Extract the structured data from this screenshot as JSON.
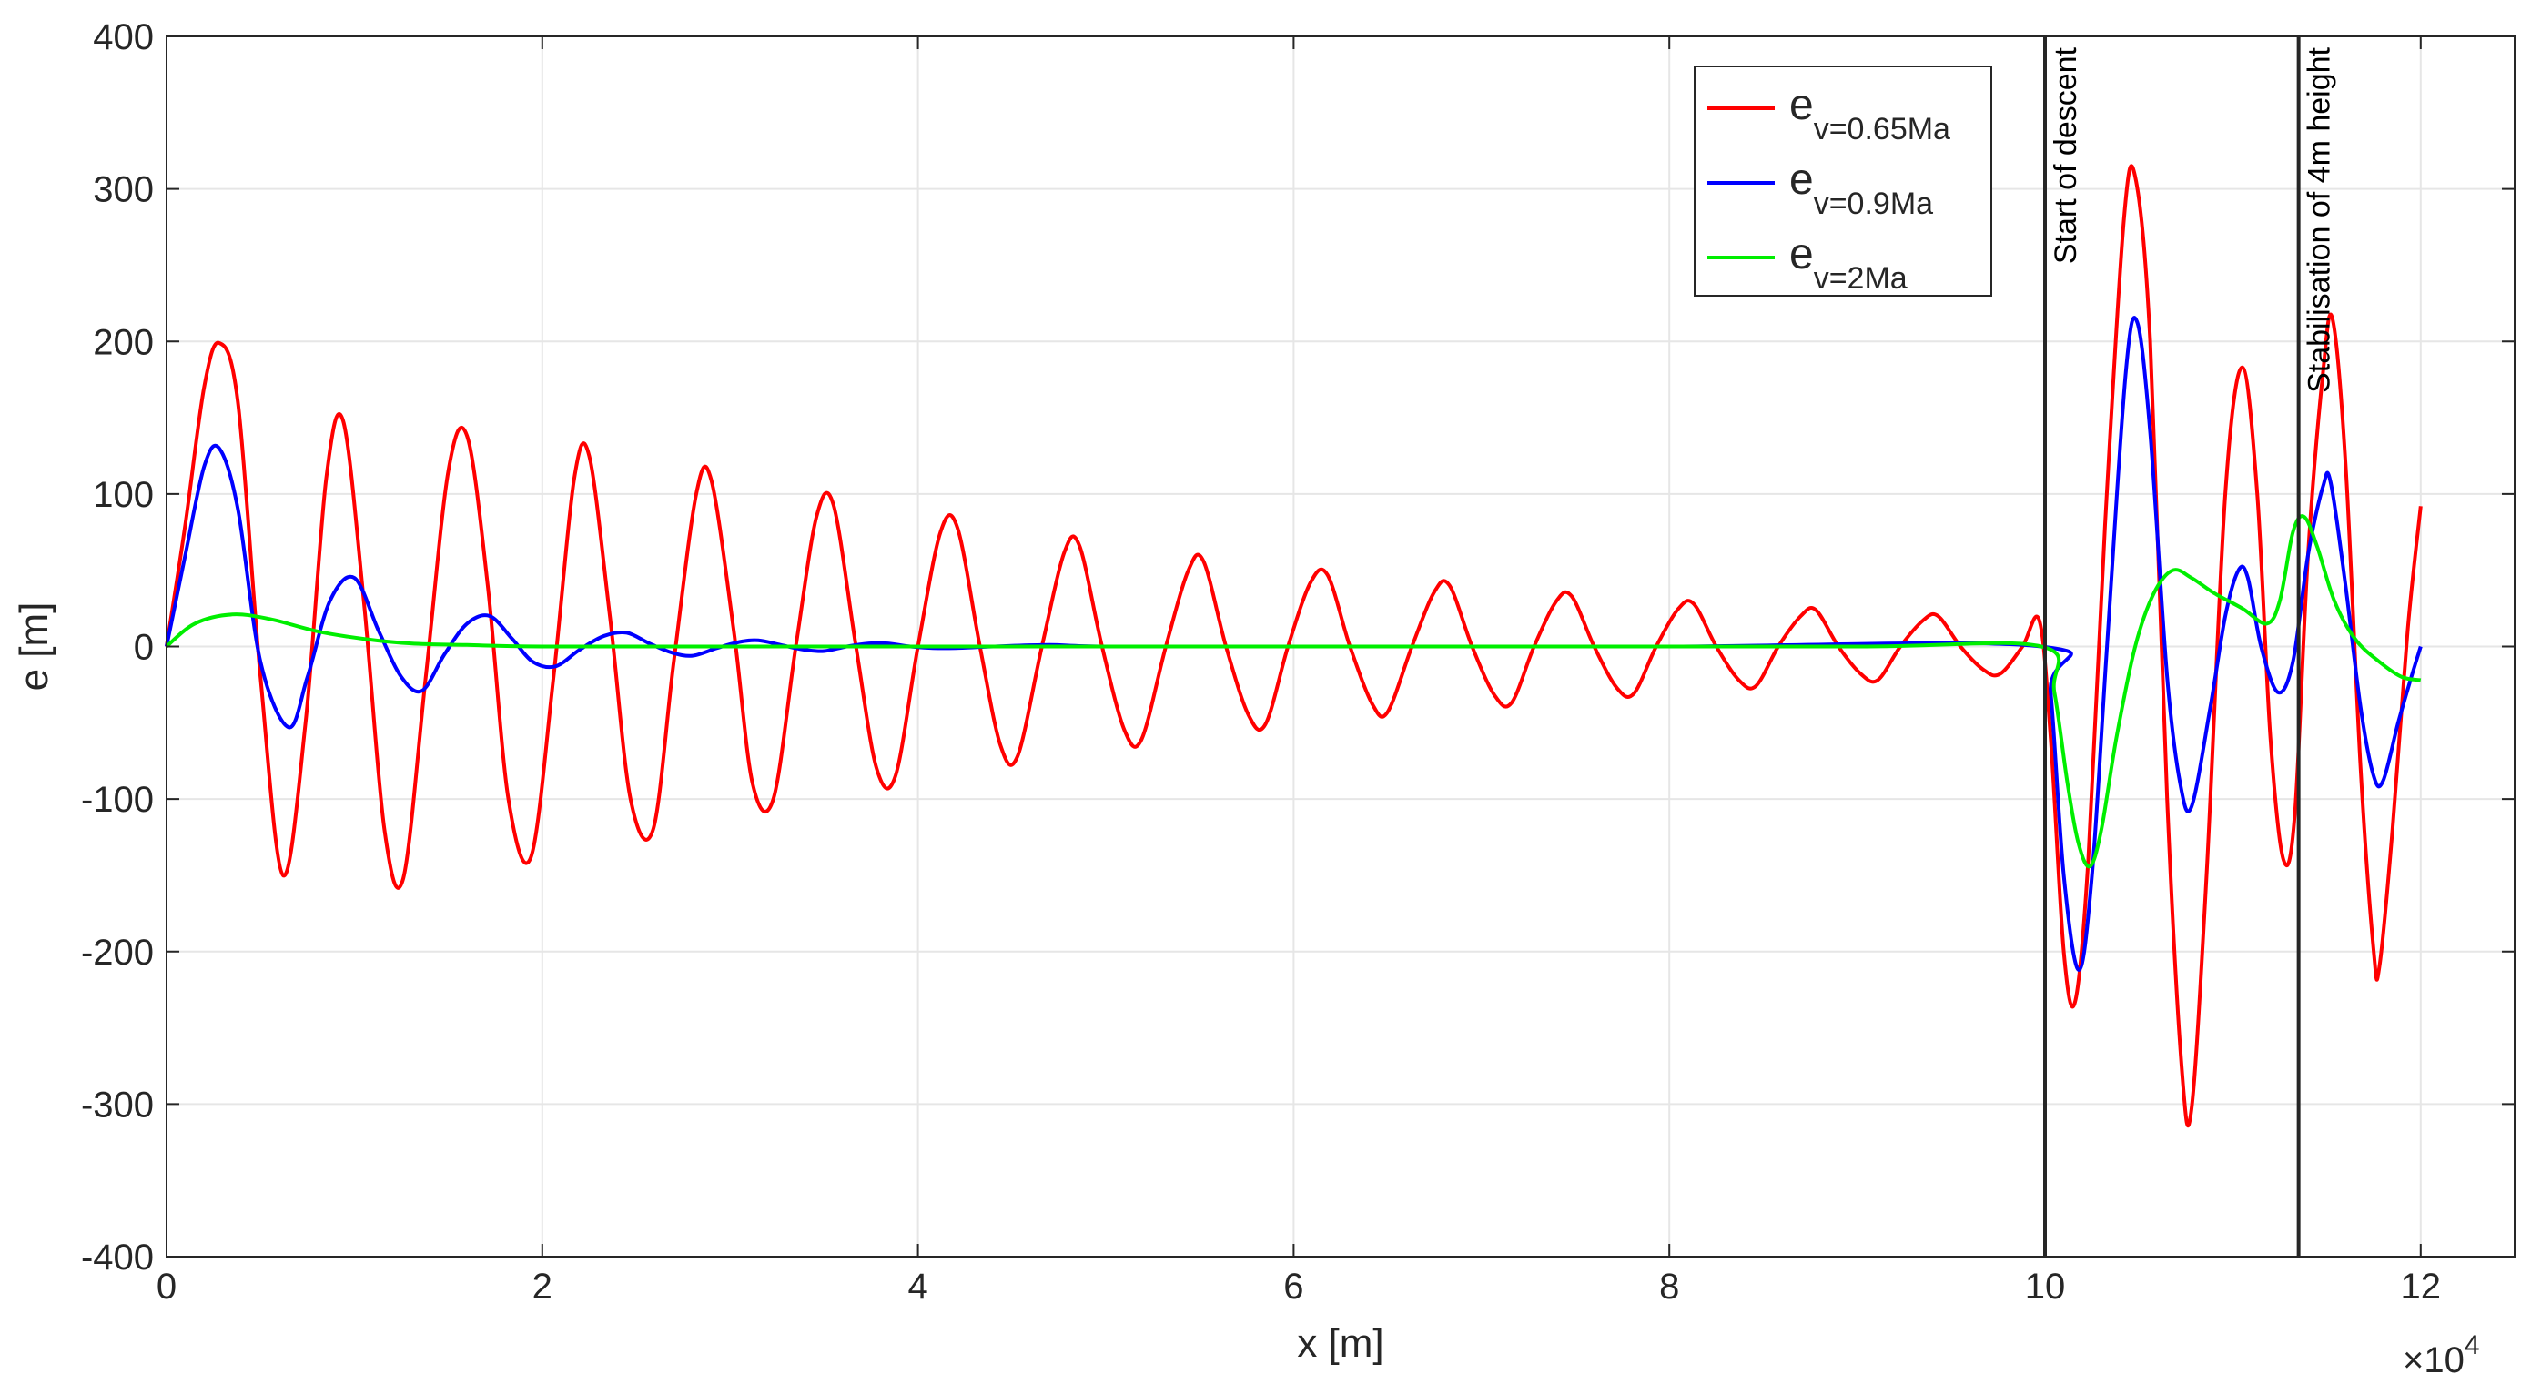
{
  "chart_data": {
    "type": "line",
    "title": "",
    "xlabel": "x [m]",
    "ylabel": "e [m]",
    "x_multiplier": {
      "base": "×10",
      "exponent": "4"
    },
    "xlim": [
      0,
      125000
    ],
    "ylim": [
      -400,
      400
    ],
    "x_ticks": [
      0,
      20000,
      40000,
      60000,
      80000,
      100000,
      120000
    ],
    "x_tick_labels": [
      "0",
      "2",
      "4",
      "6",
      "8",
      "10",
      "12"
    ],
    "y_ticks": [
      -400,
      -300,
      -200,
      -100,
      0,
      100,
      200,
      300,
      400
    ],
    "y_tick_labels": [
      "-400",
      "-300",
      "-200",
      "-100",
      "0",
      "100",
      "200",
      "300",
      "400"
    ],
    "grid": true,
    "legend_position": "top-right",
    "series": [
      {
        "name": "e",
        "name_sub": "v=0.65Ma",
        "color": "#ff0000",
        "points": [
          [
            0,
            0
          ],
          [
            1000,
            80
          ],
          [
            2000,
            170
          ],
          [
            2800,
            199
          ],
          [
            3800,
            160
          ],
          [
            5000,
            -20
          ],
          [
            6200,
            -150
          ],
          [
            7400,
            -50
          ],
          [
            8500,
            110
          ],
          [
            9400,
            148
          ],
          [
            10500,
            30
          ],
          [
            11600,
            -120
          ],
          [
            12600,
            -152
          ],
          [
            13800,
            -20
          ],
          [
            15000,
            115
          ],
          [
            16000,
            138
          ],
          [
            17100,
            40
          ],
          [
            18200,
            -100
          ],
          [
            19400,
            -138
          ],
          [
            20600,
            -20
          ],
          [
            21700,
            110
          ],
          [
            22500,
            125
          ],
          [
            23600,
            20
          ],
          [
            24700,
            -100
          ],
          [
            25900,
            -120
          ],
          [
            27000,
            -10
          ],
          [
            28200,
            100
          ],
          [
            29000,
            109
          ],
          [
            30200,
            10
          ],
          [
            31200,
            -90
          ],
          [
            32300,
            -100
          ],
          [
            33500,
            0
          ],
          [
            34600,
            85
          ],
          [
            35500,
            93
          ],
          [
            36700,
            0
          ],
          [
            37800,
            -80
          ],
          [
            38800,
            -85
          ],
          [
            40000,
            0
          ],
          [
            41200,
            75
          ],
          [
            42100,
            78
          ],
          [
            43300,
            0
          ],
          [
            44400,
            -65
          ],
          [
            45300,
            -72
          ],
          [
            46600,
            0
          ],
          [
            47800,
            62
          ],
          [
            48600,
            66
          ],
          [
            49800,
            0
          ],
          [
            51000,
            -55
          ],
          [
            51900,
            -61
          ],
          [
            53200,
            0
          ],
          [
            54400,
            50
          ],
          [
            55200,
            56
          ],
          [
            56400,
            0
          ],
          [
            57600,
            -45
          ],
          [
            58500,
            -51
          ],
          [
            59700,
            0
          ],
          [
            60900,
            42
          ],
          [
            61800,
            47
          ],
          [
            63000,
            0
          ],
          [
            64200,
            -38
          ],
          [
            65000,
            -43
          ],
          [
            66300,
            0
          ],
          [
            67500,
            36
          ],
          [
            68300,
            40
          ],
          [
            69500,
            0
          ],
          [
            70700,
            -32
          ],
          [
            71600,
            -37
          ],
          [
            72800,
            0
          ],
          [
            74000,
            30
          ],
          [
            74800,
            33
          ],
          [
            76000,
            0
          ],
          [
            77200,
            -27
          ],
          [
            78100,
            -31
          ],
          [
            79300,
            0
          ],
          [
            80500,
            25
          ],
          [
            81300,
            28
          ],
          [
            82500,
            0
          ],
          [
            83700,
            -22
          ],
          [
            84600,
            -26
          ],
          [
            85800,
            0
          ],
          [
            87000,
            20
          ],
          [
            87800,
            24
          ],
          [
            89000,
            0
          ],
          [
            90200,
            -18
          ],
          [
            91100,
            -22
          ],
          [
            92300,
            0
          ],
          [
            93500,
            17
          ],
          [
            94300,
            20
          ],
          [
            95500,
            0
          ],
          [
            96700,
            -15
          ],
          [
            97600,
            -18
          ],
          [
            98800,
            0
          ],
          [
            99700,
            17
          ],
          [
            100300,
            -60
          ],
          [
            101000,
            -200
          ],
          [
            101600,
            -233
          ],
          [
            102300,
            -140
          ],
          [
            103200,
            80
          ],
          [
            104200,
            280
          ],
          [
            104800,
            308
          ],
          [
            105600,
            200
          ],
          [
            106500,
            -100
          ],
          [
            107300,
            -280
          ],
          [
            107800,
            -303
          ],
          [
            108600,
            -150
          ],
          [
            109600,
            100
          ],
          [
            110500,
            183
          ],
          [
            111300,
            100
          ],
          [
            112000,
            -60
          ],
          [
            112700,
            -140
          ],
          [
            113300,
            -110
          ],
          [
            114000,
            60
          ],
          [
            114800,
            180
          ],
          [
            115300,
            215
          ],
          [
            116000,
            120
          ],
          [
            116800,
            -80
          ],
          [
            117500,
            -200
          ],
          [
            117800,
            -210
          ],
          [
            118500,
            -120
          ],
          [
            119300,
            10
          ],
          [
            120000,
            92
          ]
        ]
      },
      {
        "name": "e",
        "name_sub": "v=0.9Ma",
        "color": "#0000ff",
        "points": [
          [
            0,
            0
          ],
          [
            1000,
            60
          ],
          [
            2000,
            118
          ],
          [
            2800,
            130
          ],
          [
            3800,
            90
          ],
          [
            5000,
            -10
          ],
          [
            6500,
            -53
          ],
          [
            7500,
            -20
          ],
          [
            8700,
            30
          ],
          [
            10000,
            45
          ],
          [
            11300,
            10
          ],
          [
            12500,
            -20
          ],
          [
            13600,
            -29
          ],
          [
            14800,
            -5
          ],
          [
            16000,
            15
          ],
          [
            17200,
            20
          ],
          [
            18400,
            5
          ],
          [
            19500,
            -10
          ],
          [
            20700,
            -13
          ],
          [
            22000,
            -2
          ],
          [
            23300,
            7
          ],
          [
            24500,
            9
          ],
          [
            25700,
            2
          ],
          [
            26900,
            -4
          ],
          [
            28000,
            -6
          ],
          [
            29300,
            -1
          ],
          [
            30500,
            3
          ],
          [
            31500,
            4
          ],
          [
            32700,
            1
          ],
          [
            33900,
            -2
          ],
          [
            35000,
            -3
          ],
          [
            36200,
            0
          ],
          [
            37400,
            2
          ],
          [
            38400,
            2
          ],
          [
            39600,
            0
          ],
          [
            40800,
            -1
          ],
          [
            42000,
            -1
          ],
          [
            44000,
            0
          ],
          [
            47000,
            1
          ],
          [
            50000,
            0
          ],
          [
            60000,
            0
          ],
          [
            80000,
            0
          ],
          [
            99800,
            0
          ],
          [
            100300,
            -30
          ],
          [
            101000,
            -150
          ],
          [
            101800,
            -212
          ],
          [
            102500,
            -150
          ],
          [
            103300,
            0
          ],
          [
            104300,
            180
          ],
          [
            104900,
            213
          ],
          [
            105600,
            140
          ],
          [
            106500,
            -20
          ],
          [
            107200,
            -90
          ],
          [
            107800,
            -105
          ],
          [
            108800,
            -40
          ],
          [
            109600,
            20
          ],
          [
            110300,
            50
          ],
          [
            110800,
            45
          ],
          [
            111500,
            0
          ],
          [
            112400,
            -30
          ],
          [
            113200,
            -10
          ],
          [
            114000,
            60
          ],
          [
            114800,
            105
          ],
          [
            115200,
            108
          ],
          [
            116000,
            40
          ],
          [
            116800,
            -40
          ],
          [
            117500,
            -85
          ],
          [
            118000,
            -88
          ],
          [
            118800,
            -50
          ],
          [
            119500,
            -20
          ],
          [
            120000,
            0
          ]
        ]
      },
      {
        "name": "e",
        "name_sub": "v=2Ma",
        "color": "#00ee00",
        "points": [
          [
            0,
            0
          ],
          [
            1500,
            15
          ],
          [
            3500,
            21
          ],
          [
            5500,
            18
          ],
          [
            8000,
            10
          ],
          [
            10500,
            5
          ],
          [
            13000,
            2
          ],
          [
            16000,
            1
          ],
          [
            20000,
            0
          ],
          [
            30000,
            0
          ],
          [
            50000,
            0
          ],
          [
            70000,
            0
          ],
          [
            90000,
            0
          ],
          [
            99800,
            0
          ],
          [
            100500,
            -30
          ],
          [
            101200,
            -90
          ],
          [
            101800,
            -130
          ],
          [
            102400,
            -144
          ],
          [
            103000,
            -120
          ],
          [
            103800,
            -60
          ],
          [
            104800,
            0
          ],
          [
            105800,
            35
          ],
          [
            106800,
            50
          ],
          [
            107800,
            45
          ],
          [
            109000,
            35
          ],
          [
            110500,
            25
          ],
          [
            111800,
            15
          ],
          [
            112500,
            30
          ],
          [
            113200,
            75
          ],
          [
            113800,
            85
          ],
          [
            114500,
            65
          ],
          [
            115400,
            30
          ],
          [
            116500,
            5
          ],
          [
            117800,
            -10
          ],
          [
            119000,
            -20
          ],
          [
            120000,
            -22
          ]
        ]
      }
    ],
    "vertical_lines": [
      {
        "x": 100000,
        "label": "Start of descent"
      },
      {
        "x": 113500,
        "label": "Stabilisation of 4m height"
      }
    ]
  }
}
